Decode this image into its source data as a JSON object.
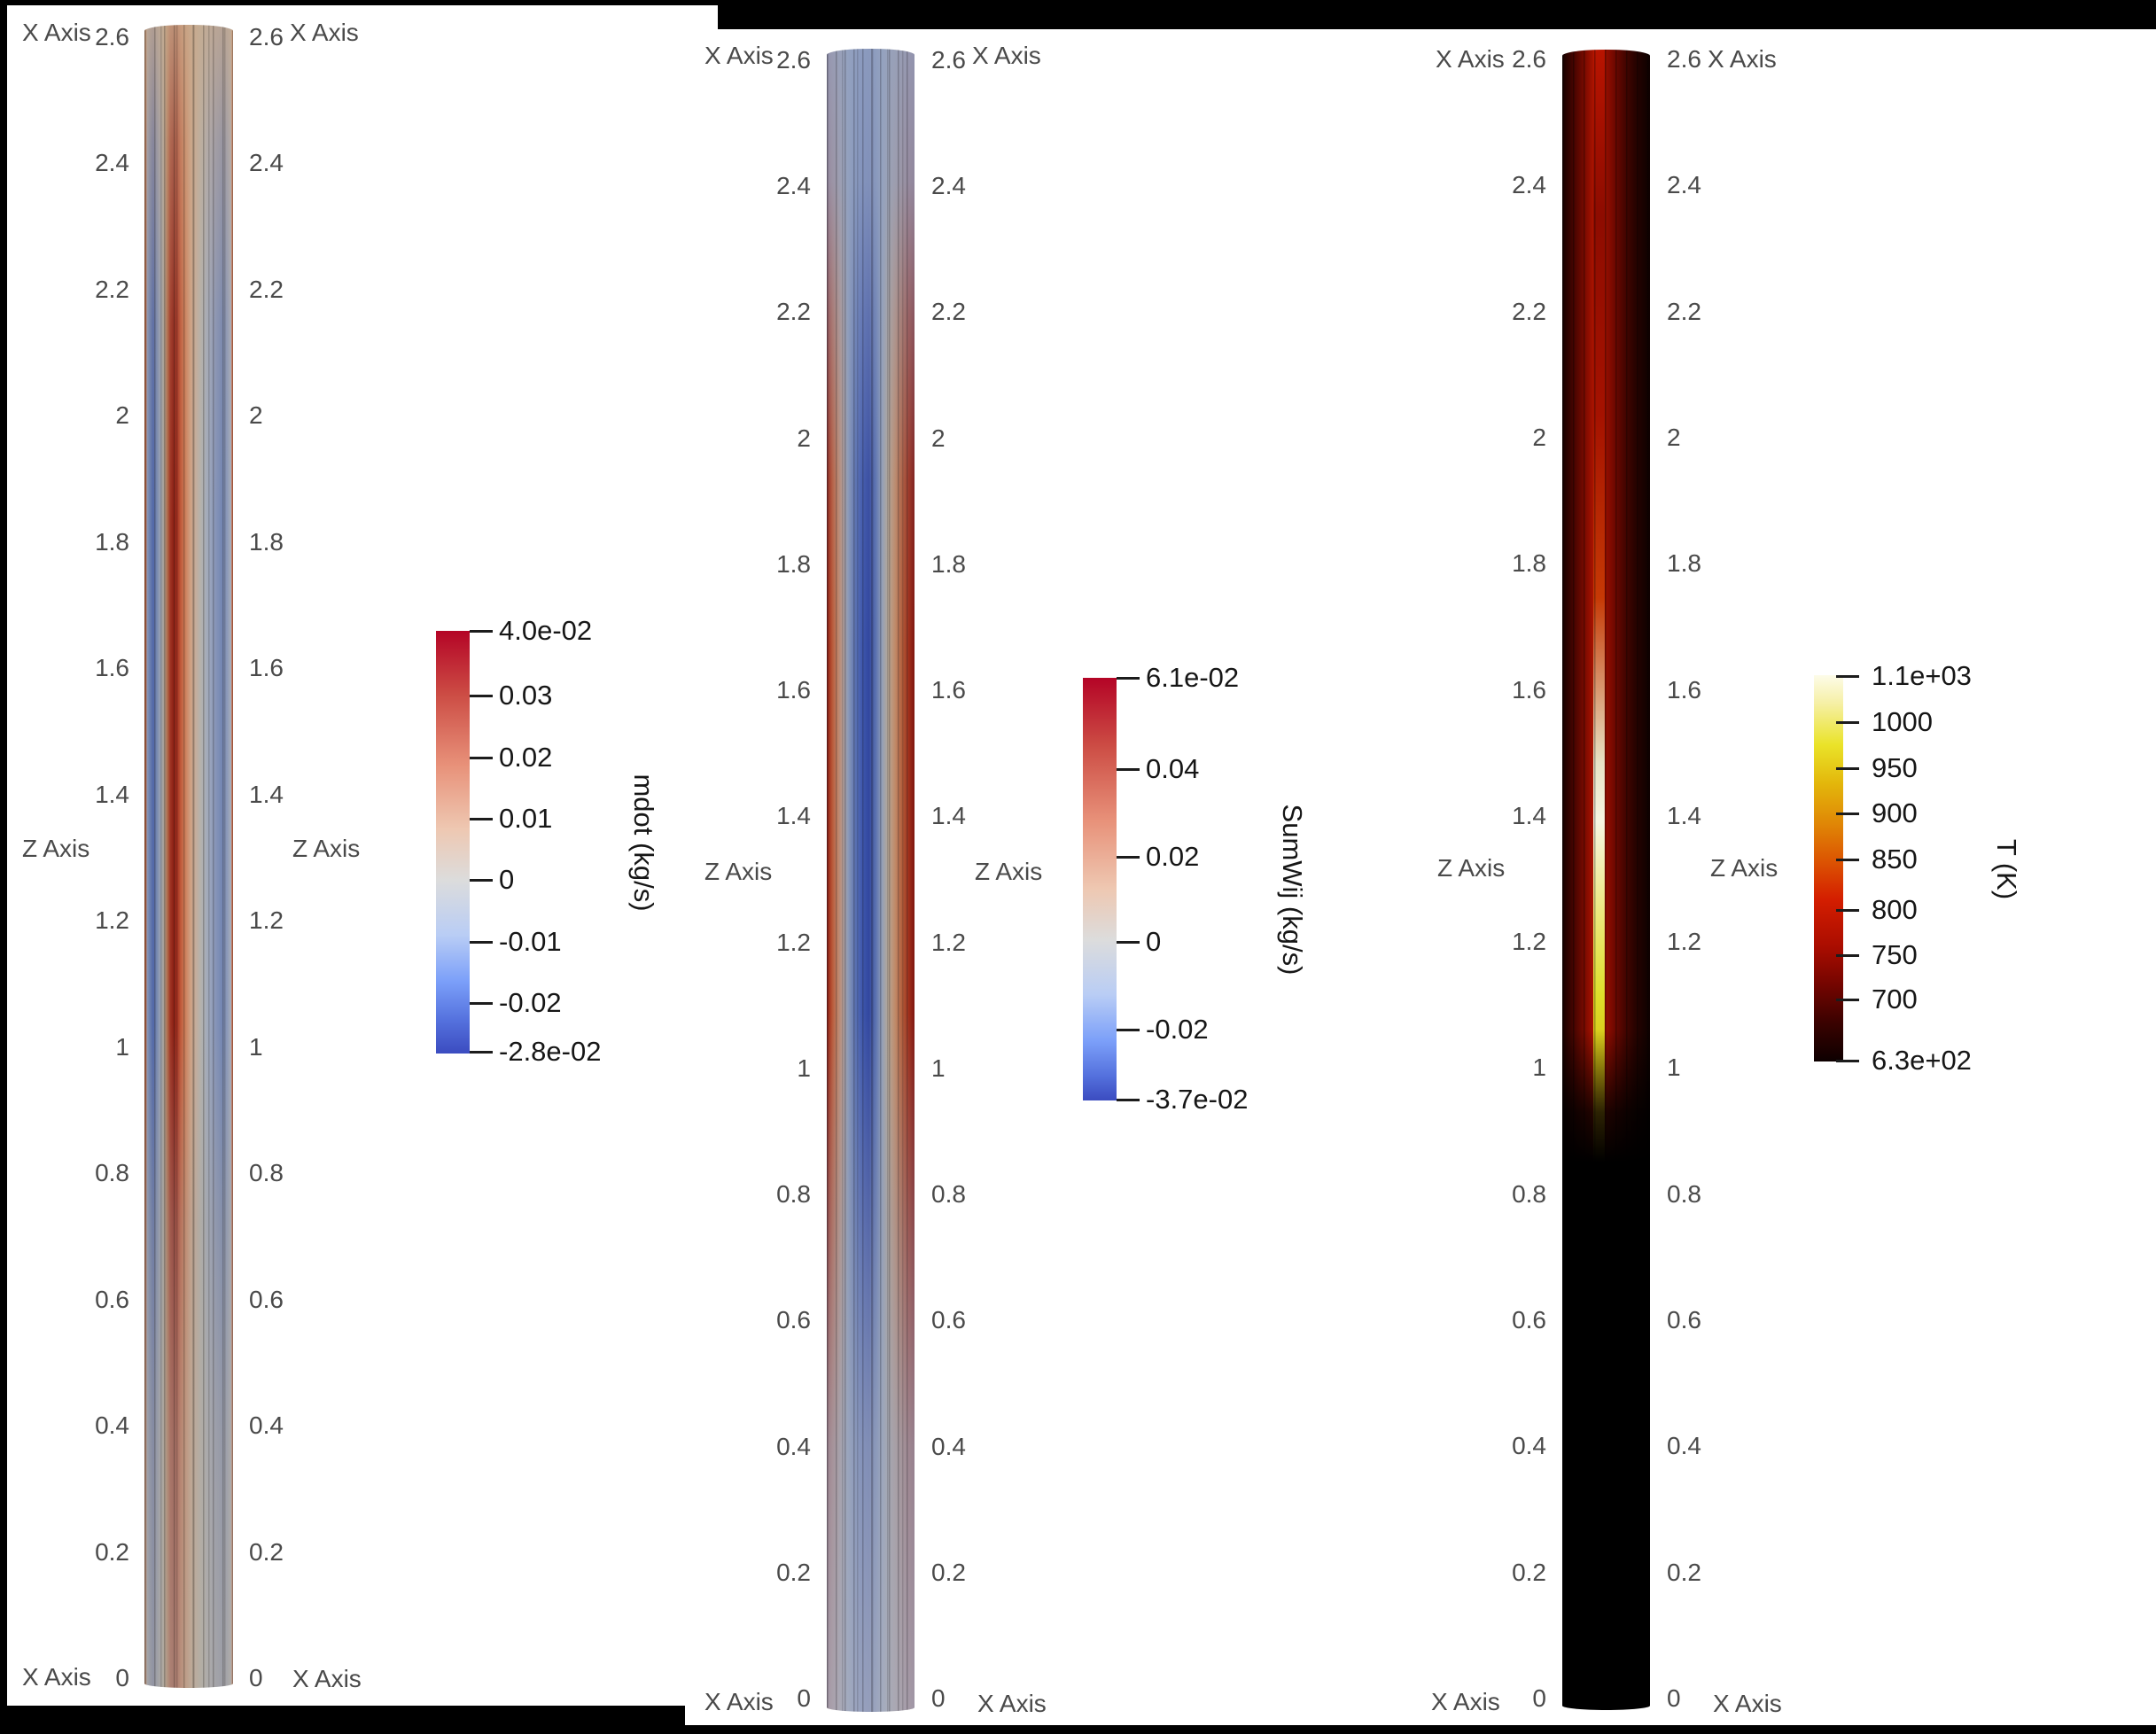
{
  "figure": {
    "background": "#ffffff",
    "frame_color": "#000000"
  },
  "panels": [
    {
      "name": "mdot",
      "x_axis_label": "X Axis",
      "z_axis_label": "Z Axis",
      "axis_ticks": [
        "2.6",
        "2.4",
        "2.2",
        "2",
        "1.8",
        "1.6",
        "1.4",
        "1.2",
        "1",
        "0.8",
        "0.6",
        "0.4",
        "0.2",
        "0"
      ],
      "colorbar": {
        "title": "mdot (kg/s)",
        "tick_labels": [
          "4.0e-02",
          "0.03",
          "0.02",
          "0.01",
          "0",
          "-0.01",
          "-0.02",
          "-2.8e-02"
        ],
        "max": "4.0e-02",
        "min": "-2.8e-02",
        "colormap": "cool-warm",
        "max_color": "#b40426",
        "mid_color": "#dcdcdc",
        "min_color": "#3b4cc0"
      }
    },
    {
      "name": "SumWij",
      "x_axis_label": "X Axis",
      "z_axis_label": "Z Axis",
      "axis_ticks": [
        "2.6",
        "2.4",
        "2.2",
        "2",
        "1.8",
        "1.6",
        "1.4",
        "1.2",
        "1",
        "0.8",
        "0.6",
        "0.4",
        "0.2",
        "0"
      ],
      "colorbar": {
        "title": "SumWij (kg/s)",
        "tick_labels": [
          "6.1e-02",
          "0.04",
          "0.02",
          "0",
          "-0.02",
          "-3.7e-02"
        ],
        "max": "6.1e-02",
        "min": "-3.7e-02",
        "colormap": "cool-warm",
        "max_color": "#b40426",
        "mid_color": "#dcdcdc",
        "min_color": "#3b4cc0"
      }
    },
    {
      "name": "T",
      "x_axis_label": "X Axis",
      "z_axis_label": "Z Axis",
      "axis_ticks": [
        "2.6",
        "2.4",
        "2.2",
        "2",
        "1.8",
        "1.6",
        "1.4",
        "1.2",
        "1",
        "0.8",
        "0.6",
        "0.4",
        "0.2",
        "0"
      ],
      "colorbar": {
        "title": "T (K)",
        "tick_labels": [
          "1.1e+03",
          "1000",
          "950",
          "900",
          "850",
          "800",
          "750",
          "700",
          "6.3e+02"
        ],
        "max": "1.1e+03",
        "min": "6.3e+02",
        "colormap": "black-body",
        "max_color": "#fdfce9",
        "mid_color": "#d41e00",
        "min_color": "#000000"
      }
    }
  ],
  "chart_data": [
    {
      "type": "heatmap",
      "title": "mdot (kg/s)",
      "xlabel": "X Axis",
      "ylabel": "Z Axis",
      "z_range": [
        0,
        2.6
      ],
      "z_ticks": [
        2.6,
        2.4,
        2.2,
        2,
        1.8,
        1.6,
        1.4,
        1.2,
        1,
        0.8,
        0.6,
        0.4,
        0.2,
        0
      ],
      "value_min": -0.028,
      "value_max": 0.04,
      "colorbar_ticks": [
        0.04,
        0.03,
        0.02,
        0.01,
        0,
        -0.01,
        -0.02,
        -0.028
      ],
      "colormap": "cool-warm",
      "legend_position": "right",
      "description": "Vertical rod pseudocolor field: blue negative bands near left edge, dark red positive core left of center, salmon fading to blue-gray toward right edge; tan wash near top and gray wash near bottom"
    },
    {
      "type": "heatmap",
      "title": "SumWij (kg/s)",
      "xlabel": "X Axis",
      "ylabel": "Z Axis",
      "z_range": [
        0,
        2.6
      ],
      "z_ticks": [
        2.6,
        2.4,
        2.2,
        2,
        1.8,
        1.6,
        1.4,
        1.2,
        1,
        0.8,
        0.6,
        0.4,
        0.2,
        0
      ],
      "value_min": -0.037,
      "value_max": 0.061,
      "colorbar_ticks": [
        0.061,
        0.04,
        0.02,
        0,
        -0.02,
        -0.037
      ],
      "colormap": "cool-warm",
      "legend_position": "right",
      "description": "Vertical rod pseudocolor field: blue-gray at top and bottom, mid-height band (z~0.9-1.6) with dark red edges, salmon flanks and deep blue core"
    },
    {
      "type": "heatmap",
      "title": "T (K)",
      "xlabel": "X Axis",
      "ylabel": "Z Axis",
      "z_range": [
        0,
        2.6
      ],
      "z_ticks": [
        2.6,
        2.4,
        2.2,
        2,
        1.8,
        1.6,
        1.4,
        1.2,
        1,
        0.8,
        0.6,
        0.4,
        0.2,
        0
      ],
      "value_min": 630,
      "value_max": 1100,
      "colorbar_ticks": [
        1100,
        1000,
        950,
        900,
        850,
        800,
        750,
        700,
        630
      ],
      "colormap": "black-body",
      "legend_position": "right",
      "description": "Vertical rod temperature field: black below z~0.6, bright white-yellow core streak near z~1.3-1.4 fading through yellow and orange downward, dark red body and edges above"
    }
  ]
}
